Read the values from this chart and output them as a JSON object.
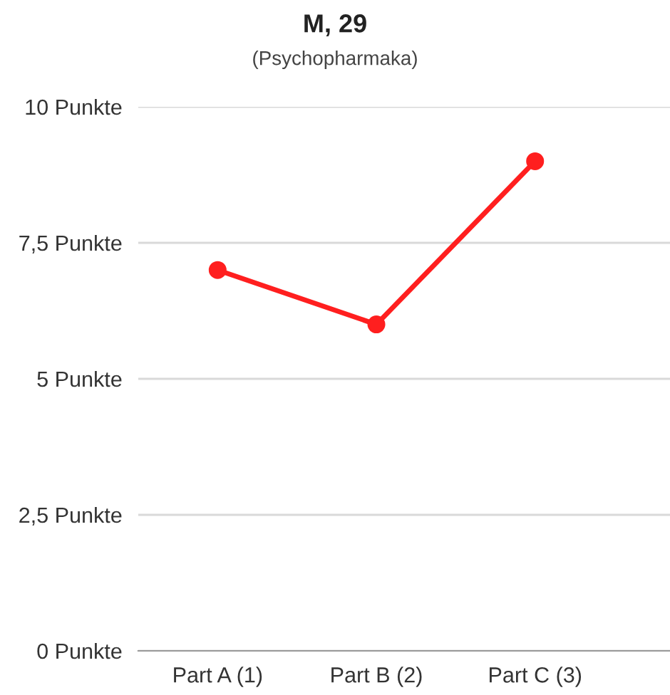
{
  "chart_data": {
    "type": "line",
    "title": "M, 29",
    "subtitle": "(Psychopharmaka)",
    "categories": [
      "Part A (1)",
      "Part B (2)",
      "Part C (3)"
    ],
    "series": [
      {
        "color": "#ff1f1f",
        "values": [
          7,
          6,
          9
        ]
      }
    ],
    "ylim": [
      0,
      10
    ],
    "yticks": [
      {
        "value": 0,
        "label": "0 Punkte"
      },
      {
        "value": 2.5,
        "label": "2,5 Punkte"
      },
      {
        "value": 5,
        "label": "5 Punkte"
      },
      {
        "value": 7.5,
        "label": "7,5 Punkte"
      },
      {
        "value": 10,
        "label": "10 Punkte"
      }
    ],
    "grid": "y",
    "marker": "circle",
    "line_style": "solid",
    "legend": false
  }
}
